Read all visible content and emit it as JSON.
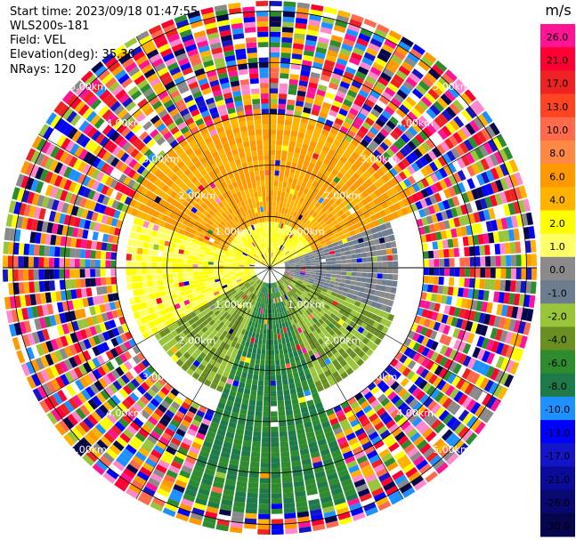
{
  "header": {
    "start_time": "Start time: 2023/09/18 01:47:55",
    "instrument": "WLS200s-181",
    "field": "Field: VEL",
    "elevation": "Elevation(deg): 35.30",
    "nrays": "NRays: 120"
  },
  "colorbar": {
    "unit": "m/s",
    "ticks": [
      "26.0",
      "21.0",
      "17.0",
      "13.0",
      "10.0",
      "8.0",
      "6.0",
      "4.0",
      "2.0",
      "1.0",
      "0.0",
      "-1.0",
      "-2.0",
      "-4.0",
      "-6.0",
      "-8.0",
      "-10.0",
      "-13.0",
      "-17.0",
      "-21.0",
      "-26.0",
      "-30.0"
    ],
    "colors": [
      "#ff1493",
      "#ff0033",
      "#ee2222",
      "#ff4422",
      "#ff6a4d",
      "#ff8844",
      "#ff9900",
      "#ffb300",
      "#ffff00",
      "#ffff66",
      "#8a8a8a",
      "#6d7c8e",
      "#9ac43a",
      "#6b8e23",
      "#2e8b2e",
      "#1f7a4a",
      "#1e90ff",
      "#0000ff",
      "#1515c8",
      "#0b0b9a",
      "#080870",
      "#06064f"
    ]
  },
  "chart_data": {
    "type": "ppi",
    "field": "VEL",
    "unit": "m/s",
    "nrays": 120,
    "range_rings_km": [
      1.0,
      2.0,
      3.0,
      4.0,
      5.0
    ],
    "range_labels": [
      "1.00km",
      "2.00km",
      "3.00km",
      "4.00km",
      "5.00km"
    ],
    "max_range_km": 5.2,
    "colorbar_levels": [
      -30,
      -26,
      -21,
      -17,
      -13,
      -10,
      -8,
      -6,
      -4,
      -2,
      -1,
      0,
      1,
      2,
      4,
      6,
      8,
      10,
      13,
      17,
      21,
      26,
      30
    ],
    "sectors": [
      {
        "azimuth_deg": [
          290,
          70
        ],
        "range_km": [
          0.9,
          3.0
        ],
        "velocity_ms": 6.0
      },
      {
        "azimuth_deg": [
          240,
          290
        ],
        "range_km": [
          0.3,
          2.8
        ],
        "velocity_ms": 2.0
      },
      {
        "azimuth_deg": [
          70,
          110
        ],
        "range_km": [
          0.3,
          2.5
        ],
        "velocity_ms": 0.0
      },
      {
        "azimuth_deg": [
          200,
          260
        ],
        "range_km": [
          0.3,
          2.6
        ],
        "velocity_ms": -2.0
      },
      {
        "azimuth_deg": [
          110,
          160
        ],
        "range_km": [
          0.3,
          2.6
        ],
        "velocity_ms": -2.0
      },
      {
        "azimuth_deg": [
          160,
          200
        ],
        "range_km": [
          0.3,
          4.8
        ],
        "velocity_ms": -6.0
      }
    ],
    "outer_noise_range_km": [
      3.0,
      5.2
    ]
  }
}
